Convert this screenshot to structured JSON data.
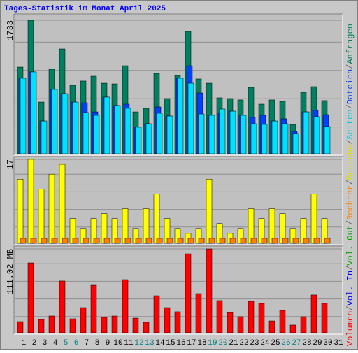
{
  "title": "Tages-Statistik im Monat April 2025",
  "separator": "/",
  "legend": [
    {
      "name": "Volumen",
      "color": "#ff0000"
    },
    {
      "name": "Vol. In",
      "color": "#0000ff"
    },
    {
      "name": "Vol. Out",
      "color": "#00a000"
    },
    {
      "name": "Rechner",
      "color": "#ff8000"
    },
    {
      "name": "Besuche",
      "color": "#dddd00"
    },
    {
      "name": "Seiten",
      "color": "#00c8e8"
    },
    {
      "name": "Dateien",
      "color": "#0040ff"
    },
    {
      "name": "Anfragen",
      "color": "#008060"
    }
  ],
  "categories": [
    "1",
    "2",
    "3",
    "4",
    "5",
    "6",
    "7",
    "8",
    "9",
    "10",
    "11",
    "12",
    "13",
    "14",
    "15",
    "16",
    "17",
    "18",
    "19",
    "20",
    "21",
    "22",
    "23",
    "24",
    "25",
    "26",
    "27",
    "28",
    "29",
    "30",
    "31"
  ],
  "highlight": [
    4,
    5,
    11,
    12,
    18,
    19,
    25,
    26
  ],
  "highlight_color": "#008080",
  "chart_data": [
    {
      "type": "bar",
      "ylim": [
        0,
        1733
      ],
      "yticks": [
        1733
      ],
      "grid": true,
      "series": [
        {
          "color": "#008060",
          "values": [
            1125,
            1733,
            671,
            1098,
            1361,
            889,
            944,
            1007,
            916,
            907,
            1143,
            544,
            590,
            1043,
            717,
            1016,
            1588,
            971,
            916,
            726,
            717,
            699,
            862,
            644,
            699,
            680,
            381,
            798,
            871,
            690,
            null
          ]
        },
        {
          "color": "#0040ff",
          "values": [
            980,
            1062,
            426,
            835,
            780,
            671,
            662,
            544,
            735,
            626,
            644,
            345,
            390,
            608,
            490,
            980,
            1143,
            789,
            499,
            526,
            553,
            499,
            472,
            499,
            426,
            454,
            290,
            544,
            563,
            508,
            null
          ]
        },
        {
          "color": "#00e0ff",
          "values": [
            980,
            1062,
            426,
            835,
            780,
            671,
            535,
            499,
            735,
            626,
            590,
            345,
            390,
            526,
            490,
            980,
            916,
            517,
            499,
            581,
            553,
            499,
            390,
            381,
            426,
            390,
            263,
            544,
            481,
            354,
            null
          ]
        }
      ]
    },
    {
      "type": "bar",
      "ylim": [
        0,
        17
      ],
      "yticks": [
        17
      ],
      "grid": true,
      "series": [
        {
          "color": "#ffff00",
          "values": [
            13,
            17,
            11,
            14,
            16,
            5,
            3,
            5,
            6,
            5,
            7,
            3,
            7,
            10,
            5,
            3,
            2,
            3,
            13,
            4,
            2,
            3,
            7,
            5,
            7,
            6,
            3,
            5,
            10,
            5,
            null
          ]
        },
        {
          "color": "#ff8000",
          "values": [
            1,
            1,
            1,
            1,
            1,
            1,
            1,
            1,
            1,
            1,
            1,
            1,
            1,
            1,
            1,
            1,
            1,
            1,
            1,
            1,
            1,
            1,
            1,
            1,
            1,
            1,
            1,
            1,
            1,
            1,
            null
          ]
        }
      ]
    },
    {
      "type": "bar",
      "ylim": [
        0,
        111.02
      ],
      "yticks": [
        {
          "value": 111.02,
          "label": "111.02 MB"
        }
      ],
      "grid": true,
      "series": [
        {
          "color": "#ff0000",
          "values": [
            14.8,
            92.5,
            17.6,
            22.2,
            68.5,
            18.5,
            33.3,
            62.9,
            20.4,
            22.2,
            70.3,
            19.4,
            13.9,
            49.0,
            33.3,
            27.8,
            104.5,
            51.8,
            111.02,
            42.6,
            26.8,
            21.3,
            41.6,
            38.9,
            15.7,
            29.6,
            10.2,
            21.3,
            50.0,
            38.9,
            null
          ]
        }
      ]
    }
  ]
}
